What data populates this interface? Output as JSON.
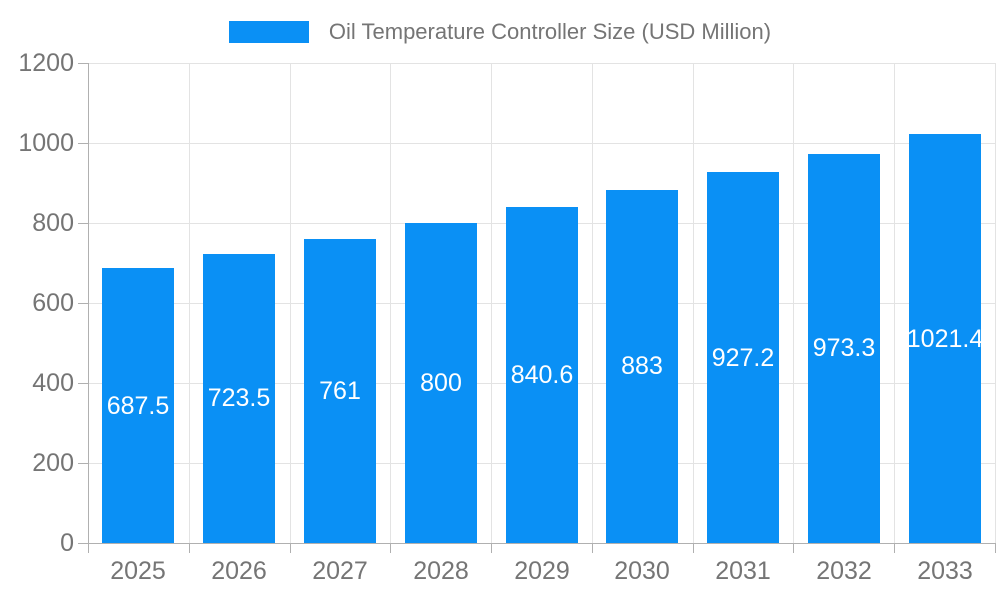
{
  "chart_data": {
    "type": "bar",
    "title": "Oil Temperature Controller Size (USD Million)",
    "categories": [
      "2025",
      "2026",
      "2027",
      "2028",
      "2029",
      "2030",
      "2031",
      "2032",
      "2033"
    ],
    "values": [
      687.5,
      723.5,
      761,
      800,
      840.6,
      883,
      927.2,
      973.3,
      1021.4
    ],
    "value_labels": [
      "687.5",
      "723.5",
      "761",
      "800",
      "840.6",
      "883",
      "927.2",
      "973.3",
      "1021.4"
    ],
    "xlabel": "",
    "ylabel": "",
    "ylim": [
      0,
      1200
    ],
    "yticks": [
      0,
      200,
      400,
      600,
      800,
      1000,
      1200
    ],
    "grid": true,
    "legend_position": "top-center"
  },
  "legend": {
    "label": "Oil Temperature Controller Size (USD Million)"
  },
  "colors": {
    "bar": "#0a90f5",
    "grid": "#e3e3e3",
    "axis": "#b0b0b0",
    "tick_label": "#757575",
    "data_label": "#ffffff",
    "background": "#ffffff"
  }
}
